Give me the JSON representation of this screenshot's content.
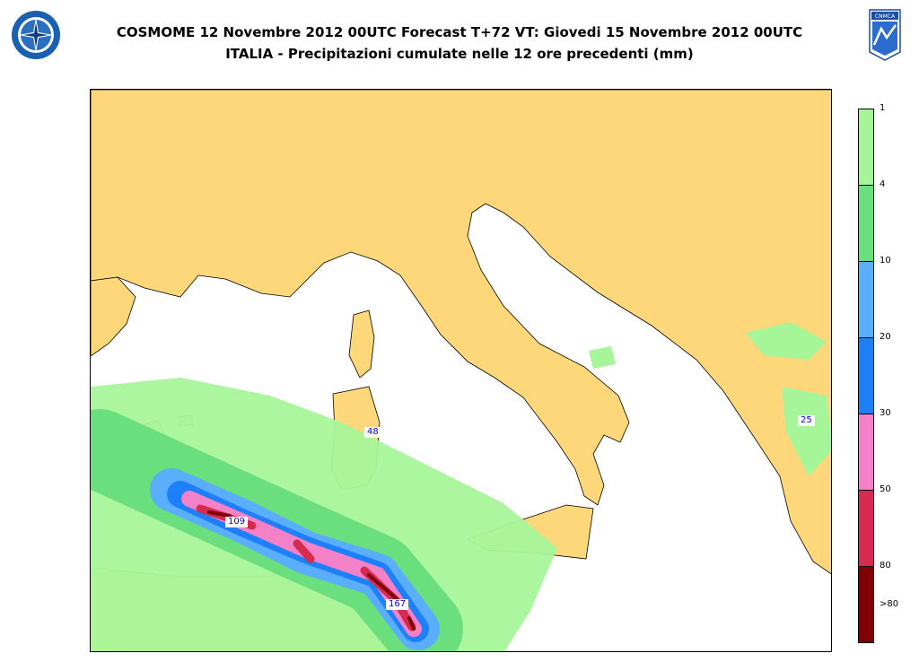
{
  "header": {
    "title_line1": "COSMOME 12 Novembre 2012 00UTC Forecast T+72 VT: Giovedi 15 Novembre 2012 00UTC",
    "title_line2": "ITALIA - Precipitazioni cumulate nelle 12 ore precedenti (mm)",
    "logo_left": "compass-rose-emblem",
    "logo_right": "CNMCA"
  },
  "map": {
    "region": "ITALIA",
    "colors": {
      "land": "#fdd779",
      "sea": "#ffffff",
      "border": "#000000"
    },
    "max_labels": [
      {
        "value": "48"
      },
      {
        "value": "109"
      },
      {
        "value": "167"
      },
      {
        "value": "25"
      }
    ]
  },
  "legend": {
    "unit": "mm",
    "bins": [
      {
        "label": "1",
        "color": "#a6f599"
      },
      {
        "label": "4",
        "color": "#6bde7e"
      },
      {
        "label": "10",
        "color": "#5aaefb"
      },
      {
        "label": "20",
        "color": "#1e80f8"
      },
      {
        "label": "30",
        "color": "#f281c8"
      },
      {
        "label": "50",
        "color": "#d42b4e"
      },
      {
        "label": "80",
        "color": "#800006"
      }
    ],
    "last_label": ">80"
  }
}
